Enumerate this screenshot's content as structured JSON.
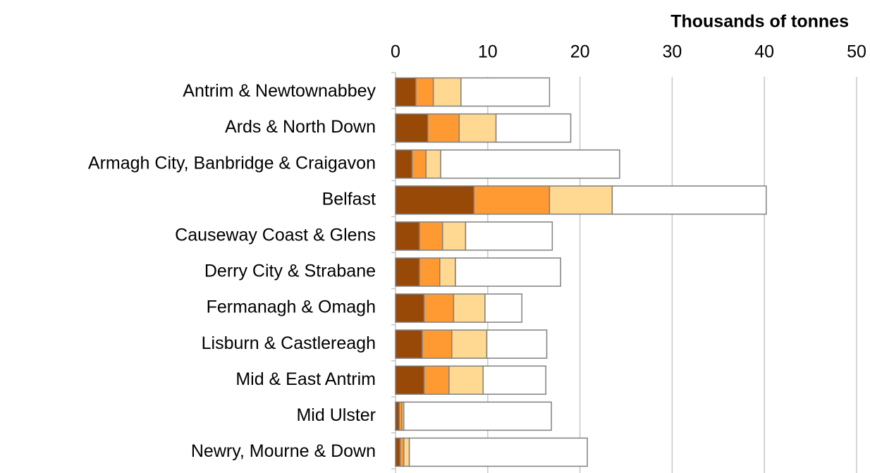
{
  "chart_data": {
    "type": "stacked-hbar",
    "title": "Thousands of tonnes",
    "categories": [
      "Antrim & Newtownabbey",
      "Ards & North Down",
      "Armagh City, Banbridge & Craigavon",
      "Belfast",
      "Causeway Coast & Glens",
      "Derry City & Strabane",
      "Fermanagh & Omagh",
      "Lisburn & Castlereagh",
      "Mid & East Antrim",
      "Mid Ulster",
      "Newry, Mourne & Down"
    ],
    "series": [
      {
        "color": "#984807",
        "values": [
          2.2,
          3.5,
          1.8,
          8.5,
          2.6,
          2.6,
          3.1,
          2.9,
          3.1,
          0.4,
          0.5
        ]
      },
      {
        "color": "#ff9a33",
        "values": [
          1.9,
          3.4,
          1.5,
          8.2,
          2.5,
          2.2,
          3.2,
          3.2,
          2.7,
          0.3,
          0.4
        ]
      },
      {
        "color": "#ffd891",
        "values": [
          3.0,
          4.0,
          1.6,
          6.8,
          2.5,
          1.7,
          3.4,
          3.8,
          3.7,
          0.2,
          0.6
        ]
      },
      {
        "color": "#ffffff",
        "values": [
          9.6,
          8.1,
          19.4,
          16.7,
          9.4,
          11.4,
          4.0,
          6.5,
          6.8,
          16.0,
          19.3
        ]
      }
    ],
    "xlim": [
      0,
      50
    ],
    "xticks": [
      0,
      10,
      20,
      30,
      40,
      50
    ],
    "grid": true
  }
}
